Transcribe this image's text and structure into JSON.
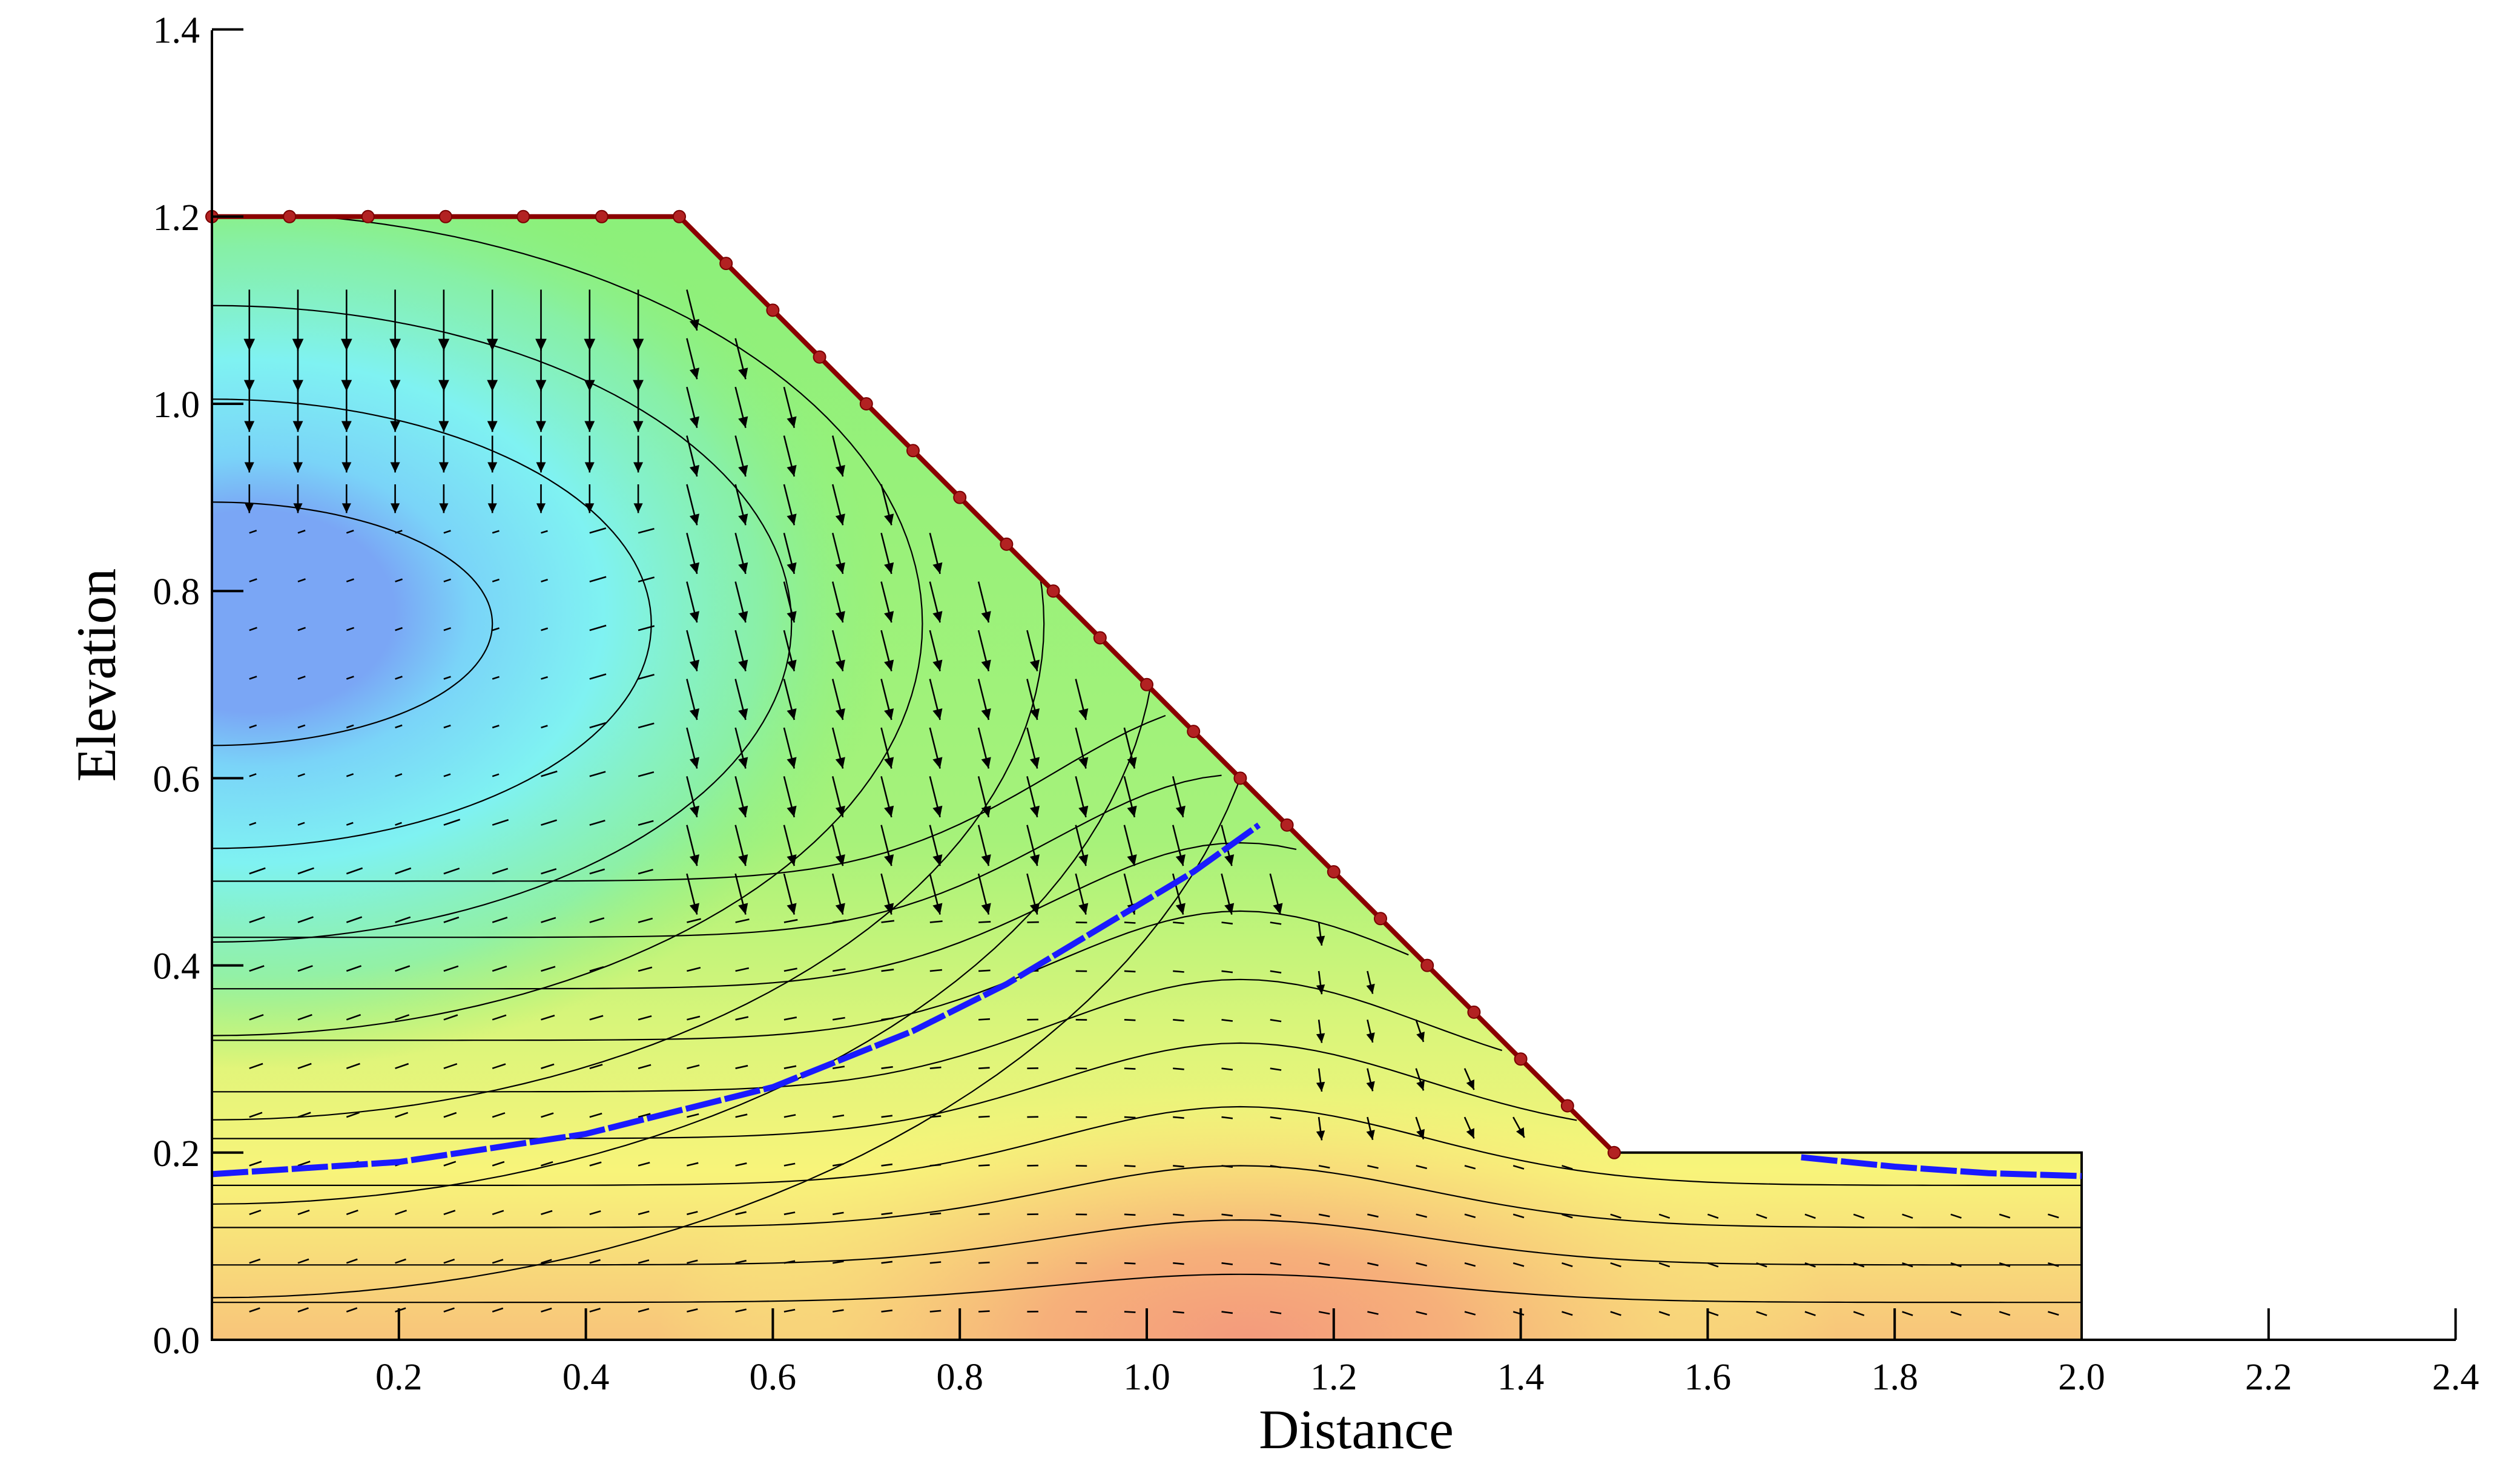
{
  "chart_data": {
    "type": "contour",
    "xlabel": "Distance",
    "ylabel": "Elevation",
    "xlim": [
      0,
      2.4
    ],
    "ylim": [
      0,
      1.4
    ],
    "x_ticks": [
      "0.2",
      "0.4",
      "0.6",
      "0.8",
      "1.0",
      "1.2",
      "1.4",
      "1.6",
      "1.8",
      "2.0",
      "2.2",
      "2.4"
    ],
    "y_ticks": [
      "0.0",
      "0.2",
      "0.4",
      "0.6",
      "0.8",
      "1.0",
      "1.2",
      "1.4"
    ],
    "domain_outline": [
      [
        0,
        0
      ],
      [
        0,
        1.2
      ],
      [
        0.5,
        1.2
      ],
      [
        1.5,
        0.2
      ],
      [
        2.0,
        0.2
      ],
      [
        2.0,
        0
      ]
    ],
    "boundary_nodes_top": [
      [
        0,
        1.2
      ],
      [
        0.083,
        1.2
      ],
      [
        0.167,
        1.2
      ],
      [
        0.25,
        1.2
      ],
      [
        0.333,
        1.2
      ],
      [
        0.417,
        1.2
      ],
      [
        0.5,
        1.2
      ]
    ],
    "boundary_nodes_slope": [
      [
        0.55,
        1.15
      ],
      [
        0.6,
        1.1
      ],
      [
        0.65,
        1.05
      ],
      [
        0.7,
        1.0
      ],
      [
        0.75,
        0.95
      ],
      [
        0.8,
        0.9
      ],
      [
        0.85,
        0.85
      ],
      [
        0.9,
        0.8
      ],
      [
        0.95,
        0.75
      ],
      [
        1.0,
        0.7
      ],
      [
        1.05,
        0.65
      ],
      [
        1.1,
        0.6
      ],
      [
        1.15,
        0.55
      ],
      [
        1.2,
        0.5
      ],
      [
        1.25,
        0.45
      ],
      [
        1.3,
        0.4
      ],
      [
        1.35,
        0.35
      ],
      [
        1.4,
        0.3
      ],
      [
        1.45,
        0.25
      ],
      [
        1.5,
        0.2
      ]
    ],
    "water_table": [
      [
        0,
        0.177
      ],
      [
        0.2,
        0.19
      ],
      [
        0.4,
        0.22
      ],
      [
        0.6,
        0.27
      ],
      [
        0.75,
        0.33
      ],
      [
        0.85,
        0.38
      ],
      [
        0.95,
        0.44
      ],
      [
        1.05,
        0.5
      ],
      [
        1.12,
        0.55
      ]
    ],
    "water_table_toe": [
      [
        1.7,
        0.195
      ],
      [
        1.8,
        0.185
      ],
      [
        1.9,
        0.178
      ],
      [
        2.0,
        0.175
      ]
    ],
    "colors": {
      "low": "#7aa6f5",
      "mid_low": "#7ff2f2",
      "mid": "#8cf07a",
      "mid_high": "#f8f47a",
      "high": "#f49a7c",
      "boundary": "#8b0000",
      "water_table": "#1a1aff"
    }
  }
}
